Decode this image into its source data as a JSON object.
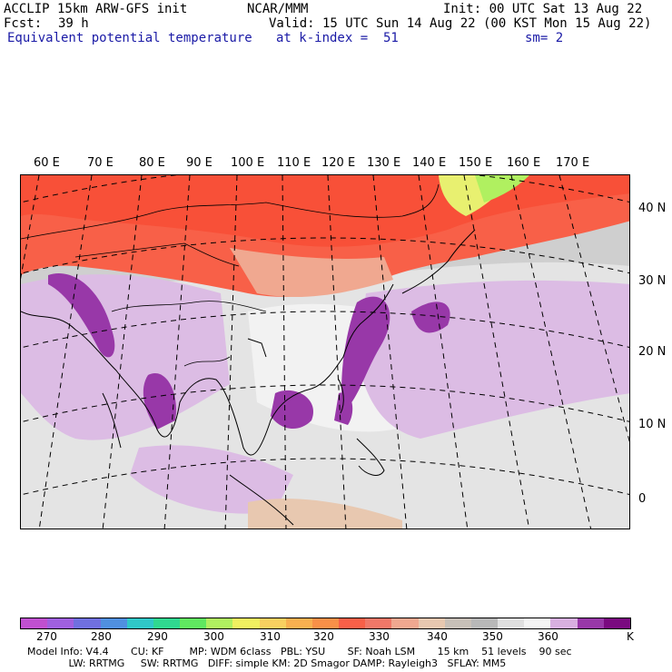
{
  "header": {
    "model": "ACCLIP 15km ARW-GFS init",
    "center": "NCAR/MMM",
    "init": "Init: 00 UTC Sat 13 Aug 22",
    "fcst_label": "Fcst:",
    "fcst_value": "39 h",
    "valid": "Valid: 15 UTC Sun 14 Aug 22 (00 KST Mon 15 Aug 22)",
    "field": "Equivalent potential temperature",
    "level": "at k-index =  51",
    "smooth": "sm= 2"
  },
  "map": {
    "lon_labels": [
      "60 E",
      "70 E",
      "80 E",
      "90 E",
      "100 E",
      "110 E",
      "120 E",
      "130 E",
      "140 E",
      "150 E",
      "160 E",
      "170 E"
    ],
    "lat_labels": [
      "40 N",
      "30 N",
      "20 N",
      "10 N",
      "0"
    ]
  },
  "colorbar": {
    "unit": "K",
    "ticks": [
      "270",
      "280",
      "290",
      "300",
      "310",
      "320",
      "330",
      "340",
      "350",
      "360"
    ],
    "colors": [
      "#c050d0",
      "#a060e0",
      "#7070e0",
      "#5090e0",
      "#30c8c8",
      "#30d890",
      "#60e860",
      "#b0f060",
      "#f0f060",
      "#f8d060",
      "#f8b050",
      "#f89048",
      "#f86048",
      "#f07868",
      "#f0a890",
      "#e8c8b0",
      "#c8c0b8",
      "#b8b8b8",
      "#e0e0e0",
      "#f4f4f4",
      "#d8b0e0",
      "#9838a8",
      "#7a0a80"
    ]
  },
  "footer": {
    "line1": "Model Info: V4.4       CU: KF        MP: WDM 6class   PBL: YSU       SF: Noah LSM       15 km    51 levels    90 sec",
    "line2": "             LW: RRTMG     SW: RRTMG   DIFF: simple KM: 2D Smagor DAMP: Rayleigh3   SFLAY: MM5"
  }
}
